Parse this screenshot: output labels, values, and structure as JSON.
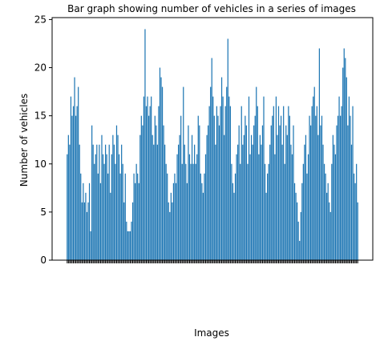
{
  "chart_data": {
    "type": "bar",
    "title": "Bar graph showing number of vehicles in a series of images",
    "x_label": "Images",
    "y_label": "Number of vehicles",
    "color": "#1f77b4",
    "ylim": [
      0,
      25.2
    ],
    "yticks": [
      0,
      5,
      10,
      15,
      20,
      25
    ],
    "categories": [
      null,
      null,
      null,
      null,
      null,
      null,
      null,
      null,
      null,
      null,
      null,
      null,
      null,
      null,
      null,
      null,
      null,
      null,
      null,
      null,
      null,
      null,
      null,
      null,
      null,
      null,
      null,
      null,
      null,
      null,
      null,
      null,
      null,
      null,
      null,
      null,
      null,
      null,
      null,
      null,
      null,
      null,
      null,
      null,
      null,
      null,
      null,
      null,
      null,
      null,
      null,
      null,
      null,
      null,
      null,
      null,
      null,
      null,
      null,
      null,
      null,
      null,
      null,
      null,
      null,
      null,
      null,
      null,
      null,
      null,
      null,
      null,
      null,
      null,
      null,
      null,
      null,
      null,
      null,
      null,
      null,
      null,
      null,
      null,
      null,
      null,
      null,
      null,
      null,
      null,
      null,
      null,
      null,
      null,
      null,
      null,
      null,
      null,
      null,
      null,
      null,
      null,
      null,
      null,
      null,
      null,
      null,
      null,
      null,
      null,
      null,
      null,
      null,
      null,
      null,
      null,
      null,
      null,
      null,
      null,
      null,
      null,
      null,
      null,
      null,
      null,
      null,
      null,
      null,
      null,
      null,
      null,
      null,
      null,
      null,
      null,
      null,
      null,
      null,
      null,
      null,
      null,
      null,
      null,
      null,
      null,
      null,
      null,
      null,
      null,
      null,
      null,
      null,
      null,
      null,
      null,
      null,
      null,
      null,
      null,
      null,
      null,
      null,
      null,
      null,
      null,
      null,
      null,
      null,
      null,
      null,
      null,
      null,
      null,
      null,
      null,
      null,
      null,
      null,
      null,
      null,
      null,
      null,
      null,
      null,
      null,
      null,
      null,
      null,
      null,
      null,
      null,
      null,
      null,
      null,
      null,
      null,
      null,
      null,
      null,
      null,
      null,
      null,
      null,
      null,
      null,
      null,
      null,
      null,
      null,
      null,
      null,
      null,
      null,
      null,
      null,
      null,
      null,
      null,
      null,
      null,
      null,
      null,
      null,
      null,
      null,
      null,
      null,
      null,
      null,
      null,
      null,
      null,
      null,
      null,
      null
    ],
    "values": [
      11,
      13,
      12,
      17,
      15,
      16,
      19,
      15,
      16,
      18,
      12,
      9,
      6,
      8,
      6,
      7,
      5,
      6,
      8,
      3,
      14,
      12,
      10,
      11,
      12,
      9,
      12,
      8,
      13,
      11,
      10,
      12,
      11,
      9,
      12,
      7,
      11,
      13,
      12,
      10,
      14,
      13,
      11,
      9,
      12,
      10,
      6,
      9,
      4,
      3,
      3,
      3,
      4,
      6,
      9,
      8,
      10,
      9,
      8,
      13,
      15,
      14,
      17,
      24,
      16,
      17,
      15,
      16,
      17,
      13,
      12,
      15,
      14,
      12,
      16,
      20,
      19,
      18,
      14,
      12,
      10,
      9,
      6,
      5,
      7,
      6,
      8,
      9,
      8,
      11,
      12,
      13,
      15,
      10,
      18,
      12,
      10,
      8,
      14,
      11,
      10,
      13,
      10,
      12,
      10,
      11,
      15,
      14,
      9,
      8,
      7,
      9,
      11,
      13,
      14,
      16,
      18,
      21,
      17,
      15,
      12,
      16,
      15,
      14,
      16,
      19,
      17,
      13,
      16,
      18,
      23,
      17,
      16,
      10,
      8,
      7,
      9,
      11,
      12,
      14,
      10,
      16,
      12,
      13,
      15,
      14,
      10,
      17,
      11,
      13,
      12,
      14,
      15,
      18,
      16,
      11,
      13,
      12,
      14,
      17,
      10,
      7,
      9,
      10,
      12,
      14,
      15,
      16,
      11,
      17,
      13,
      16,
      14,
      15,
      12,
      16,
      10,
      14,
      13,
      16,
      15,
      12,
      11,
      14,
      8,
      7,
      6,
      4,
      2,
      5,
      8,
      10,
      12,
      13,
      9,
      11,
      15,
      14,
      16,
      17,
      18,
      15,
      16,
      13,
      22,
      14,
      15,
      12,
      10,
      9,
      7,
      8,
      6,
      5,
      10,
      13,
      12,
      11,
      14,
      15,
      17,
      15,
      16,
      20,
      22,
      21,
      19,
      14,
      17,
      15,
      12,
      16,
      9,
      8,
      10,
      6
    ]
  }
}
